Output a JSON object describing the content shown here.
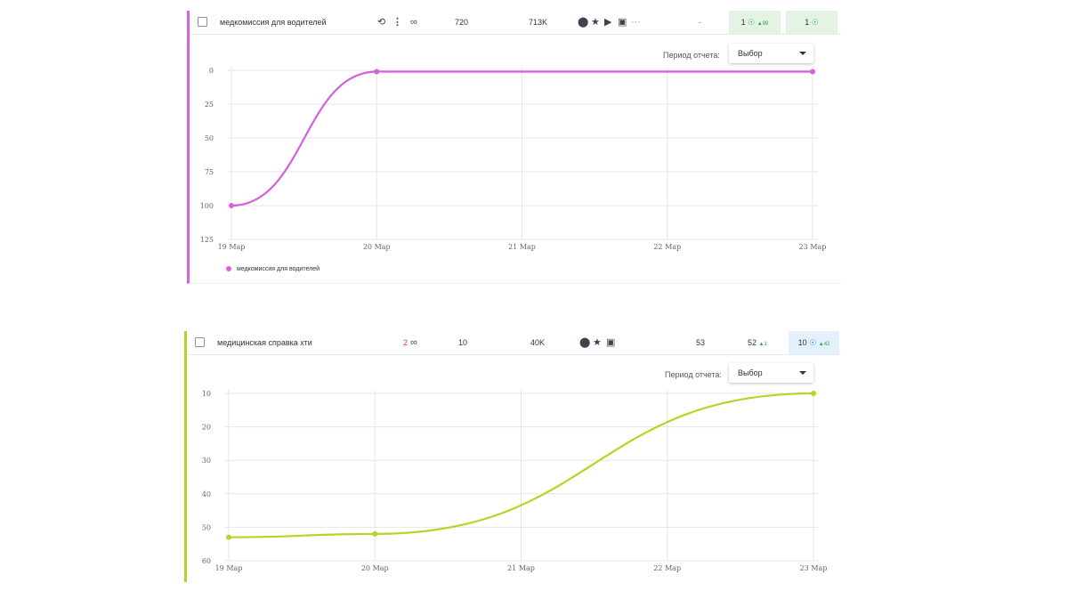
{
  "panels": [
    {
      "keyword": "медкомиссия для водителей",
      "frequency": "720",
      "results": "713K",
      "dash": "-",
      "position1": "1",
      "position1_change": "99",
      "position2": "1",
      "period_label": "Период отчета:",
      "period_value": "Выбор",
      "legend": "медкомиссия для водителей",
      "accent": "#d462dc",
      "chart_data": {
        "type": "line",
        "x": [
          "19 Мар",
          "20 Мар",
          "21 Мар",
          "22 Мар",
          "23 Мар"
        ],
        "series": [
          {
            "name": "медкомиссия для водителей",
            "points": [
              [
                0,
                100
              ],
              [
                1,
                1
              ],
              [
                4,
                1
              ]
            ]
          }
        ],
        "y_ticks": [
          "0",
          "25",
          "50",
          "75",
          "100",
          "125"
        ],
        "ylim": [
          0,
          125
        ],
        "y_inverted": true
      }
    },
    {
      "keyword": "медицинская справка хти",
      "links": "2",
      "frequency": "10",
      "results": "40K",
      "position_a": "53",
      "position_b": "52",
      "position_b_change": "1",
      "position_c": "10",
      "position_c_change": "42",
      "period_label": "Период отчета:",
      "period_value": "Выбор",
      "accent": "#b5d426",
      "chart_data": {
        "type": "line",
        "x": [
          "19 Мар",
          "20 Мар",
          "21 Мар",
          "22 Мар",
          "23 Мар"
        ],
        "series": [
          {
            "points": [
              [
                0,
                53
              ],
              [
                1,
                52
              ],
              [
                4,
                10
              ]
            ]
          }
        ],
        "y_ticks": [
          "10",
          "20",
          "30",
          "40",
          "50",
          "60"
        ],
        "ylim": [
          10,
          60
        ],
        "y_inverted": true
      }
    }
  ]
}
